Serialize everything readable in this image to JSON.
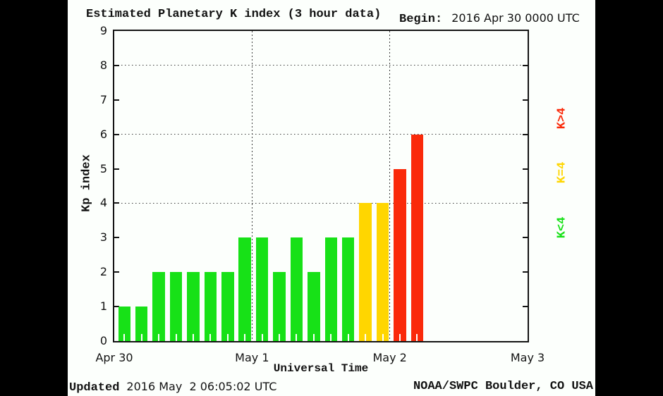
{
  "chart_data": {
    "type": "bar",
    "title": "Estimated Planetary K index (3 hour data)",
    "begin_label": "Begin:",
    "begin_value": "2016 Apr 30 0000 UTC",
    "xlabel": "Universal Time",
    "ylabel": "Kp index",
    "ylim": [
      0,
      9
    ],
    "yticks": [
      0,
      1,
      2,
      3,
      4,
      5,
      6,
      7,
      8,
      9
    ],
    "y_gridlines": [
      4,
      6,
      8
    ],
    "x_span_hours": 72,
    "bar_period_hours": 3,
    "x_day_labels": [
      "Apr 30",
      "May 1",
      "May 2",
      "May 3"
    ],
    "x_day_hours": [
      0,
      24,
      48,
      72
    ],
    "x_gridline_hours": [
      24,
      48
    ],
    "values": [
      1,
      1,
      2,
      2,
      2,
      2,
      2,
      3,
      3,
      2,
      3,
      2,
      3,
      3,
      4,
      4,
      5,
      6
    ],
    "colors": {
      "low": "#17e117",
      "mid": "#ffd600",
      "high": "#fa2a0a"
    },
    "color_rule": {
      "low": "K<4",
      "mid": "K=4",
      "high": "K>4"
    },
    "legend_position": "right-rotated",
    "legend": [
      {
        "label": "K>4",
        "level": "high",
        "y": 168
      },
      {
        "label": "K=4",
        "level": "mid",
        "y": 245
      },
      {
        "label": "K<4",
        "level": "low",
        "y": 323
      }
    ],
    "grid": "dotted"
  },
  "footer": {
    "updated_label": "Updated",
    "updated_value": "2016 May  2 06:05:02 UTC",
    "source": "NOAA/SWPC Boulder, CO USA"
  }
}
